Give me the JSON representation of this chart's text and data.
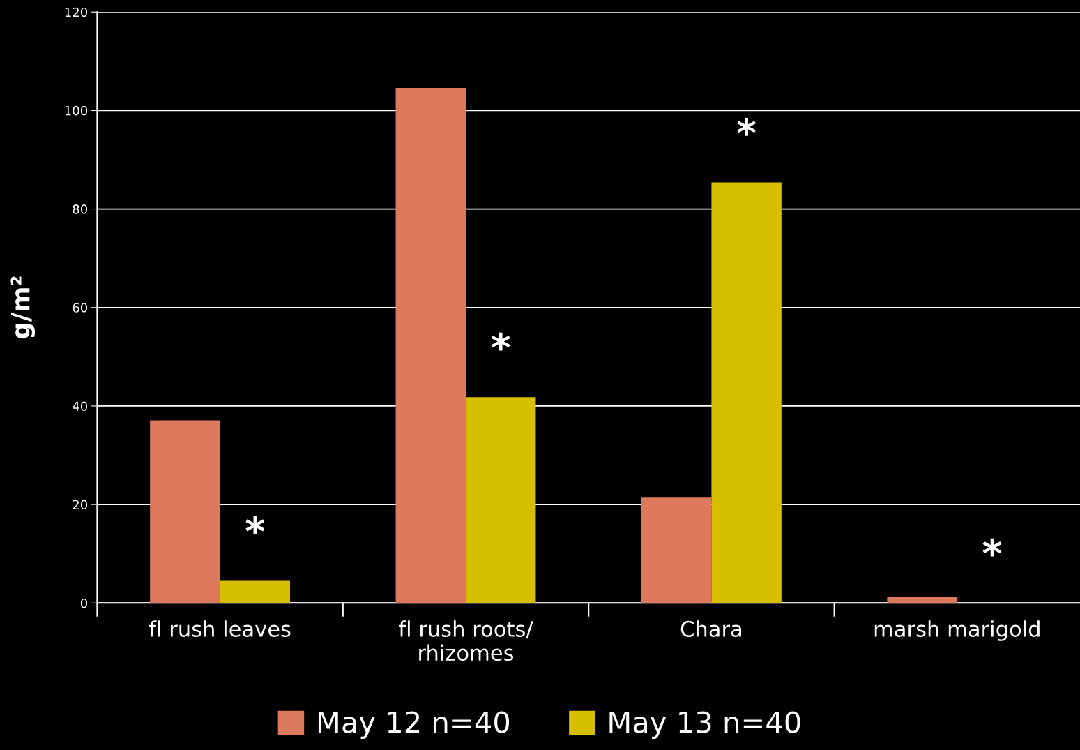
{
  "chart_data": {
    "type": "bar",
    "ylabel": "g/m²",
    "categories": [
      "fl rush leaves",
      "fl rush roots/\nrhizomes",
      "Chara",
      "marsh marigold"
    ],
    "series": [
      {
        "name": "May 12 n=40",
        "color": "#dd7a5e",
        "values": [
          37.1,
          104.6,
          21.4,
          1.3
        ]
      },
      {
        "name": "May 13 n=40",
        "color": "#d6be00",
        "values": [
          4.5,
          41.8,
          85.4,
          0
        ]
      }
    ],
    "ylim": [
      0,
      120
    ],
    "yticks": [
      0,
      20,
      40,
      60,
      80,
      100,
      120
    ],
    "grid": "y",
    "legend": "bottom",
    "annotations": [
      "*",
      "*",
      "*",
      "*"
    ]
  }
}
